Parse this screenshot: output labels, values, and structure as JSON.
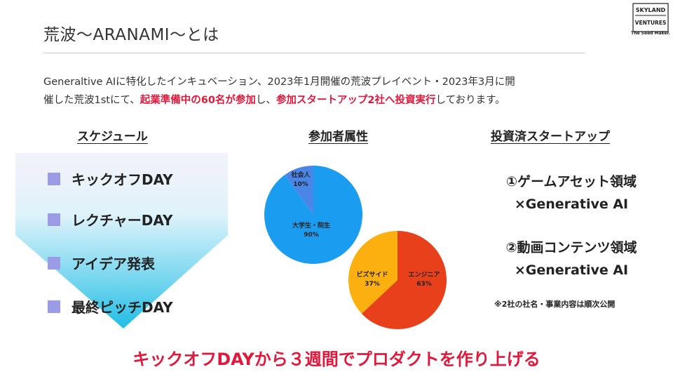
{
  "title": "荒波〜ARANAMI〜とは",
  "logo": {
    "top": "SKYLAND",
    "middle": "VENTURES",
    "tagline": "The Seed Maker."
  },
  "intro": {
    "p1": "Generaltive AIに特化したインキュベーション、2023年1月開催の荒波プレイベント・2023年3月に開",
    "p2": "催した荒波1stにて、",
    "h1": "起業準備中の60名が参加",
    "p3": "し、",
    "h2": "参加スタートアップ2社へ投資実行",
    "p4": "しております。"
  },
  "schedule": {
    "heading": "スケジュール",
    "items": [
      "キックオフDAY",
      "レクチャーDAY",
      "アイデア発表",
      "最終ピッチDAY"
    ]
  },
  "attributes": {
    "heading": "参加者属性",
    "pie1": [
      {
        "label": "社会人",
        "pct": "10%",
        "value": 10,
        "color": "#4a86e8"
      },
      {
        "label": "大学生・院生",
        "pct": "90%",
        "value": 90,
        "color": "#1a9cf0"
      }
    ],
    "pie2": [
      {
        "label": "エンジニア",
        "pct": "63%",
        "value": 63,
        "color": "#e8401a"
      },
      {
        "label": "ビズサイド",
        "pct": "37%",
        "value": 37,
        "color": "#fbb010"
      }
    ]
  },
  "investments": {
    "heading": "投資済スタートアップ",
    "item1_line1": "①ゲームアセット領域",
    "item1_line2": "×Generative AI",
    "item2_line1": "②動画コンテンツ領域",
    "item2_line2": "×Generative AI",
    "note": "※2社の社名・事業内容は順次公開"
  },
  "bottom_message": "キックオフDAYから３週間でプロダクトを作り上げる"
}
